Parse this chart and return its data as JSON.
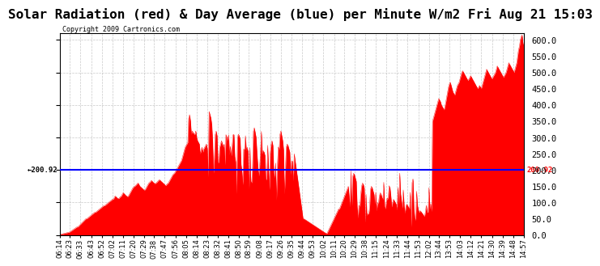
{
  "title": "Solar Radiation (red) & Day Average (blue) per Minute W/m2 Fri Aug 21 15:03",
  "copyright_text": "Copyright 2009 Cartronics.com",
  "avg_value": 200.92,
  "y_min": 0.0,
  "y_max": 620.0,
  "y_ticks": [
    0.0,
    50.0,
    100.0,
    150.0,
    200.0,
    250.0,
    300.0,
    350.0,
    400.0,
    450.0,
    500.0,
    550.0,
    600.0
  ],
  "bar_color": "#ff0000",
  "avg_line_color": "#0000ff",
  "background_color": "#ffffff",
  "grid_color": "#bbbbbb",
  "title_fontsize": 11.5,
  "x_tick_labels": [
    "06:14",
    "06:23",
    "06:33",
    "06:43",
    "06:52",
    "07:02",
    "07:11",
    "07:20",
    "07:29",
    "07:38",
    "07:47",
    "07:56",
    "08:05",
    "08:14",
    "08:23",
    "08:32",
    "08:41",
    "08:50",
    "08:59",
    "09:08",
    "09:17",
    "09:26",
    "09:35",
    "09:44",
    "09:53",
    "10:02",
    "10:11",
    "10:20",
    "10:29",
    "10:38",
    "11:15",
    "11:24",
    "11:33",
    "11:44",
    "11:53",
    "12:02",
    "13:44",
    "13:53",
    "14:03",
    "14:12",
    "14:21",
    "14:30",
    "14:39",
    "14:48",
    "14:57"
  ]
}
